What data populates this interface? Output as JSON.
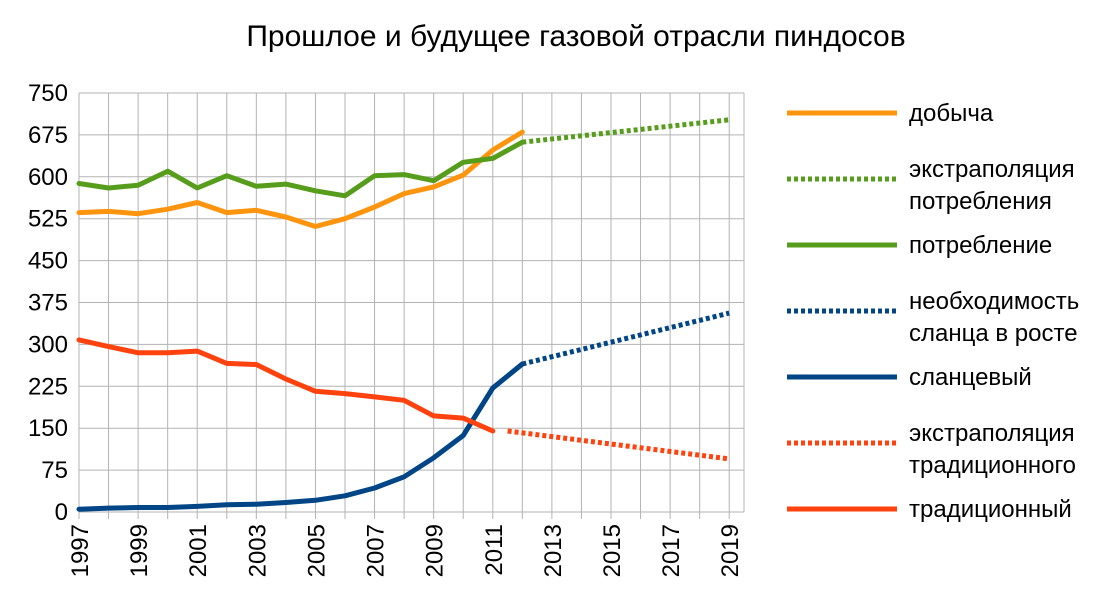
{
  "chart_data": {
    "type": "line",
    "title": "Прошлое и будущее газовой отрасли пиндосов",
    "xlabel": "",
    "ylabel": "",
    "ylim": [
      0,
      750
    ],
    "xlim": [
      1997,
      2019.5
    ],
    "yticks": [
      "0",
      "75",
      "150",
      "225",
      "300",
      "375",
      "450",
      "525",
      "600",
      "675",
      "750"
    ],
    "xticks": [
      "1997",
      "1999",
      "2001",
      "2003",
      "2005",
      "2007",
      "2009",
      "2011",
      "2013",
      "2015",
      "2017",
      "2019"
    ],
    "grid": true,
    "legend_position": "right",
    "series": [
      {
        "name": "добыча",
        "color": "#ff950e",
        "style": "solid",
        "legend_lines": [
          "добыча"
        ],
        "x": [
          1997,
          1998,
          1999,
          2000,
          2001,
          2002,
          2003,
          2004,
          2005,
          2006,
          2007,
          2008,
          2009,
          2010,
          2011,
          2012
        ],
        "values": [
          536,
          538,
          534,
          542,
          554,
          536,
          540,
          528,
          511,
          525,
          546,
          570,
          582,
          603,
          648,
          680
        ]
      },
      {
        "name": "экстраполяция потребления",
        "color": "#579d1c",
        "style": "dotted",
        "legend_lines": [
          "экстраполяция",
          "потребления"
        ],
        "x": [
          2012,
          2019
        ],
        "values": [
          662,
          702
        ]
      },
      {
        "name": "потребление",
        "color": "#579d1c",
        "style": "solid",
        "legend_lines": [
          "потребление"
        ],
        "x": [
          1997,
          1998,
          1999,
          2000,
          2001,
          2002,
          2003,
          2004,
          2005,
          2006,
          2007,
          2008,
          2009,
          2010,
          2011,
          2012
        ],
        "values": [
          588,
          580,
          585,
          610,
          580,
          602,
          583,
          587,
          575,
          566,
          602,
          604,
          593,
          626,
          633,
          662
        ]
      },
      {
        "name": "необходимость сланца в росте",
        "color": "#004586",
        "style": "dotted",
        "legend_lines": [
          "необходимость",
          "сланца в росте"
        ],
        "x": [
          2012,
          2019
        ],
        "values": [
          265,
          356
        ]
      },
      {
        "name": "сланцевый",
        "color": "#004586",
        "style": "solid",
        "legend_lines": [
          "сланцевый"
        ],
        "x": [
          1997,
          1998,
          1999,
          2000,
          2001,
          2002,
          2003,
          2004,
          2005,
          2006,
          2007,
          2008,
          2009,
          2010,
          2011,
          2012
        ],
        "values": [
          5,
          7,
          8,
          8,
          10,
          13,
          14,
          17,
          21,
          29,
          43,
          63,
          97,
          137,
          222,
          265
        ]
      },
      {
        "name": "экстраполяция традиционного",
        "color": "#ff420e",
        "style": "dotted",
        "legend_lines": [
          "экстраполяция",
          "традиционного"
        ],
        "x": [
          2011.5,
          2019
        ],
        "values": [
          145,
          95
        ]
      },
      {
        "name": "традиционный",
        "color": "#ff420e",
        "style": "solid",
        "legend_lines": [
          "традиционный"
        ],
        "x": [
          1997,
          1998,
          1999,
          2000,
          2001,
          2002,
          2003,
          2004,
          2005,
          2006,
          2007,
          2008,
          2009,
          2010,
          2011
        ],
        "values": [
          308,
          296,
          285,
          285,
          288,
          266,
          264,
          238,
          216,
          212,
          206,
          200,
          172,
          168,
          145
        ]
      }
    ]
  }
}
